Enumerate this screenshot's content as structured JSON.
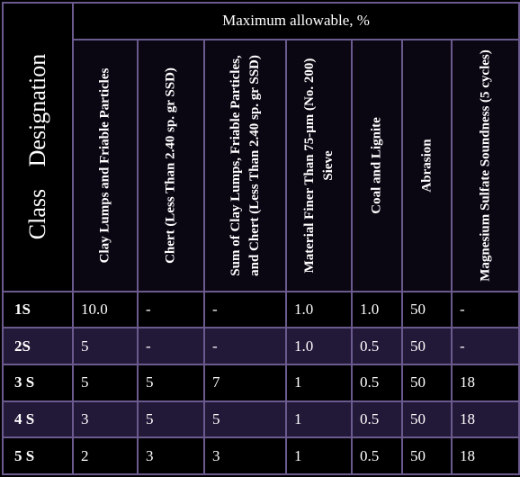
{
  "table": {
    "class_header": "Class    Designation",
    "group_header": "Maximum allowable, %",
    "columns": [
      "Clay Lumps and Friable Particles",
      "Chert (Less Than 2.40 sp. gr SSD)",
      "Sum of Clay Lumps, Friable Particles, and Chert (Less Than 2.40 sp. gr SSD)",
      "Material Finer Than 75-μm (No. 200) Sieve",
      "Coal and Lignite",
      "Abrasion",
      "Magnesium Sulfate Soundness (5 cycles)"
    ],
    "rows": [
      {
        "class": "1S",
        "values": [
          "10.0",
          "-",
          "-",
          "1.0",
          "1.0",
          "50",
          "-"
        ]
      },
      {
        "class": "2S",
        "values": [
          "5",
          "-",
          "-",
          "1.0",
          "0.5",
          "50",
          "-"
        ]
      },
      {
        "class": "3 S",
        "values": [
          "5",
          "5",
          "7",
          "1",
          "0.5",
          "50",
          "18"
        ]
      },
      {
        "class": "4 S",
        "values": [
          "3",
          "5",
          "5",
          "1",
          "0.5",
          "50",
          "18"
        ]
      },
      {
        "class": "5 S",
        "values": [
          "2",
          "3",
          "3",
          "1",
          "0.5",
          "50",
          "18"
        ]
      }
    ]
  },
  "colors": {
    "background": "#000000",
    "grid": "#6a5a8e",
    "band": "#221838",
    "text": "#ffffff"
  }
}
